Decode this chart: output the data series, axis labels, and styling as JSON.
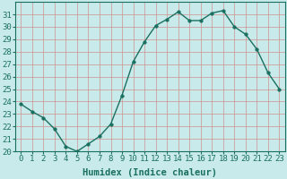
{
  "x": [
    0,
    1,
    2,
    3,
    4,
    5,
    6,
    7,
    8,
    9,
    10,
    11,
    12,
    13,
    14,
    15,
    16,
    17,
    18,
    19,
    20,
    21,
    22,
    23
  ],
  "y": [
    23.8,
    23.2,
    22.7,
    21.8,
    20.4,
    20.0,
    20.6,
    21.2,
    22.2,
    24.5,
    27.2,
    28.8,
    30.1,
    30.6,
    31.2,
    30.5,
    30.5,
    31.1,
    31.3,
    30.0,
    29.4,
    28.2,
    26.3,
    25.0
  ],
  "line_color": "#1a7060",
  "marker_color": "#1a7060",
  "bg_color": "#c8eaea",
  "grid_color": "#d09090",
  "text_color": "#1a7060",
  "xlabel": "Humidex (Indice chaleur)",
  "ylim": [
    20,
    32
  ],
  "xlim": [
    -0.5,
    23.5
  ],
  "yticks": [
    20,
    21,
    22,
    23,
    24,
    25,
    26,
    27,
    28,
    29,
    30,
    31
  ],
  "xticks": [
    0,
    1,
    2,
    3,
    4,
    5,
    6,
    7,
    8,
    9,
    10,
    11,
    12,
    13,
    14,
    15,
    16,
    17,
    18,
    19,
    20,
    21,
    22,
    23
  ],
  "xlabel_fontsize": 7.5,
  "tick_fontsize": 6.5,
  "line_width": 1.0,
  "marker_size": 2.5
}
